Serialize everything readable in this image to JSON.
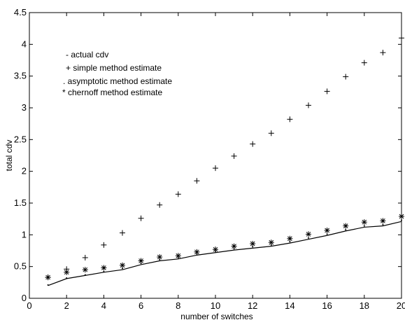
{
  "chart_data": {
    "type": "scatter",
    "title": "",
    "xlabel": "number of switches",
    "ylabel": "total cdv",
    "xlim": [
      0,
      20
    ],
    "ylim": [
      0,
      4.5
    ],
    "xticks": [
      0,
      2,
      4,
      6,
      8,
      10,
      12,
      14,
      16,
      18,
      20
    ],
    "yticks": [
      0,
      0.5,
      1,
      1.5,
      2,
      2.5,
      3,
      3.5,
      4,
      4.5
    ],
    "xtick_labels": [
      "0",
      "2",
      "4",
      "6",
      "8",
      "10",
      "12",
      "14",
      "16",
      "18",
      "20"
    ],
    "ytick_labels": [
      "0",
      "0.5",
      "1",
      "1.5",
      "2",
      "2.5",
      "3",
      "3.5",
      "4",
      "4.5"
    ],
    "grid": false,
    "legend_position": "top-left",
    "legend": [
      "- actual cdv",
      "+ simple method estimate",
      ". asymptotic method estimate",
      "* chernoff method estimate"
    ],
    "x": [
      1,
      2,
      3,
      4,
      5,
      6,
      7,
      8,
      9,
      10,
      11,
      12,
      13,
      14,
      15,
      16,
      17,
      18,
      19,
      20
    ],
    "series": [
      {
        "name": "actual cdv",
        "style": "line",
        "values": [
          0.2,
          0.31,
          0.36,
          0.41,
          0.45,
          0.53,
          0.59,
          0.62,
          0.68,
          0.72,
          0.76,
          0.79,
          0.82,
          0.87,
          0.93,
          0.99,
          1.06,
          1.12,
          1.14,
          1.21
        ]
      },
      {
        "name": "simple method estimate",
        "style": "plus",
        "values": [
          0.33,
          0.46,
          0.64,
          0.84,
          1.03,
          1.26,
          1.47,
          1.64,
          1.85,
          2.05,
          2.24,
          2.43,
          2.6,
          2.82,
          3.04,
          3.26,
          3.49,
          3.71,
          3.87,
          4.1
        ]
      },
      {
        "name": "asymptotic method estimate",
        "style": "dot",
        "values": [
          0.21,
          0.32,
          0.37,
          0.42,
          0.47,
          0.55,
          0.61,
          0.64,
          0.7,
          0.74,
          0.78,
          0.81,
          0.84,
          0.89,
          0.95,
          1.01,
          1.08,
          1.14,
          1.16,
          1.23
        ]
      },
      {
        "name": "chernoff method estimate",
        "style": "star",
        "values": [
          0.33,
          0.41,
          0.45,
          0.48,
          0.52,
          0.59,
          0.65,
          0.67,
          0.73,
          0.77,
          0.82,
          0.86,
          0.88,
          0.94,
          1.01,
          1.07,
          1.14,
          1.2,
          1.22,
          1.29
        ]
      }
    ]
  }
}
